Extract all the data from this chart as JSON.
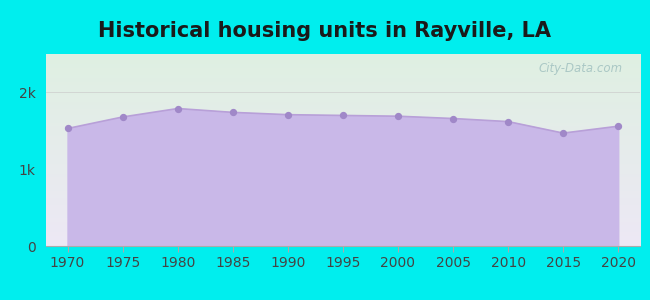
{
  "title": "Historical housing units in Rayville, LA",
  "years": [
    1970,
    1975,
    1980,
    1985,
    1990,
    1995,
    2000,
    2005,
    2010,
    2015,
    2020
  ],
  "values": [
    1530,
    1680,
    1790,
    1740,
    1710,
    1700,
    1690,
    1660,
    1620,
    1470,
    1560
  ],
  "fill_color": "#c9b8e8",
  "line_color": "#b8a0d8",
  "marker_color": "#a088c8",
  "background_color": "#00EEEE",
  "plot_bg_top": "#dff0e2",
  "plot_bg_bottom": "#ede8f5",
  "ylim": [
    0,
    2500
  ],
  "yticks": [
    0,
    1000,
    2000
  ],
  "ytick_labels": [
    "0",
    "1k",
    "2k"
  ],
  "title_fontsize": 15,
  "tick_fontsize": 10,
  "watermark": "City-Data.com",
  "xlim_left": 1968,
  "xlim_right": 2022
}
